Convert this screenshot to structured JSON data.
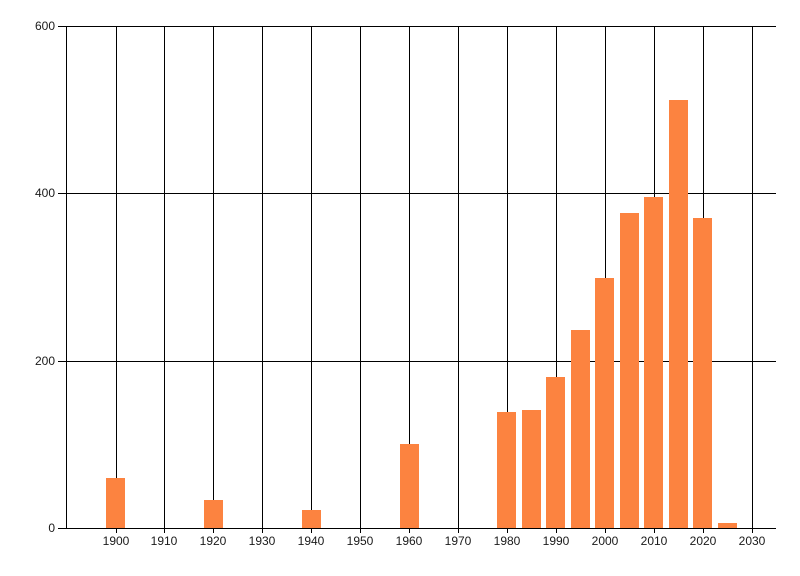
{
  "chart_data": {
    "type": "bar",
    "title": "",
    "xlabel": "",
    "ylabel": "",
    "x": [
      1900,
      1920,
      1940,
      1960,
      1980,
      1985,
      1990,
      1995,
      2000,
      2005,
      2010,
      2015,
      2020,
      2025
    ],
    "values": [
      60,
      33,
      22,
      100,
      139,
      141,
      181,
      237,
      299,
      377,
      396,
      511,
      370,
      6
    ],
    "x_ticks": [
      1900,
      1910,
      1920,
      1930,
      1940,
      1950,
      1960,
      1970,
      1980,
      1990,
      2000,
      2010,
      2020,
      2030
    ],
    "x_tick_labels": [
      "1900",
      "1910",
      "1920",
      "1930",
      "1940",
      "1950",
      "1960",
      "1970",
      "1980",
      "1990",
      "2000",
      "2010",
      "2020",
      "2030"
    ],
    "y_ticks": [
      0,
      200,
      400,
      600
    ],
    "y_tick_labels": [
      "0",
      "200",
      "400",
      "600"
    ],
    "xlim": [
      1890,
      2035
    ],
    "ylim": [
      0,
      600
    ],
    "grid": true,
    "legend": false,
    "colors": {
      "bar": "#FC8340",
      "grid": "#000000",
      "text": "#1a1a1a",
      "background": "#ffffff"
    }
  }
}
